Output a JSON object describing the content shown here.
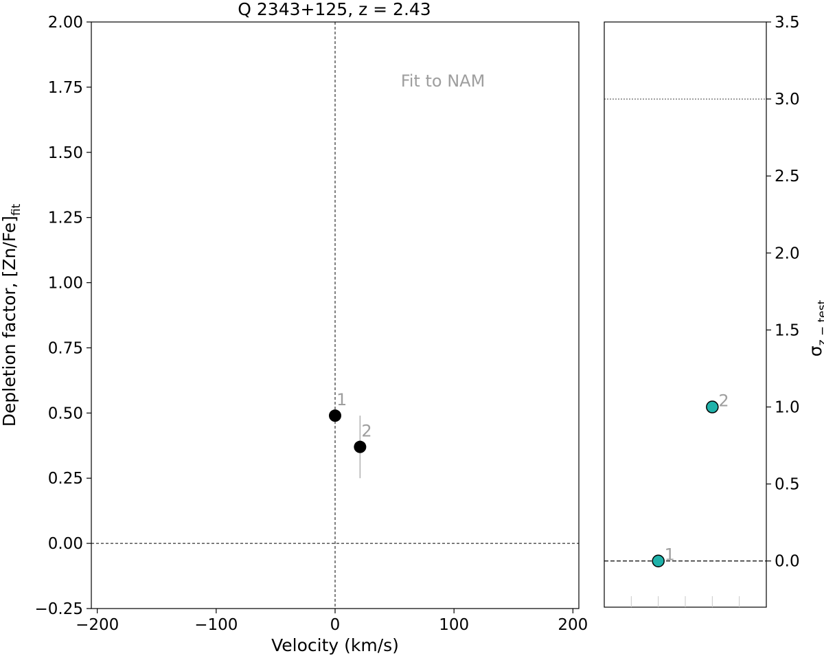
{
  "chart_data": [
    {
      "type": "scatter",
      "title": "Q 2343+125, z = 2.43",
      "xlabel": "Velocity (km/s)",
      "ylabel_main": "Depletion factor, [Zn/Fe]",
      "ylabel_sub": "fit",
      "xlim": [
        -205,
        205
      ],
      "ylim": [
        -0.25,
        2.0
      ],
      "xticks": [
        -200,
        -100,
        0,
        100,
        200
      ],
      "xtick_labels": [
        "−200",
        "−100",
        "0",
        "100",
        "200"
      ],
      "yticks": [
        -0.25,
        0.0,
        0.25,
        0.5,
        0.75,
        1.0,
        1.25,
        1.5,
        1.75,
        2.0
      ],
      "ytick_labels": [
        "−0.25",
        "0.00",
        "0.25",
        "0.50",
        "0.75",
        "1.00",
        "1.25",
        "1.50",
        "1.75",
        "2.00"
      ],
      "annotation": "Fit to NAM",
      "reference_lines": {
        "x": 0,
        "y": 0
      },
      "points": [
        {
          "label": "1",
          "x": 0,
          "y": 0.49,
          "yerr": 0.0
        },
        {
          "label": "2",
          "x": 21,
          "y": 0.37,
          "yerr": 0.12
        }
      ],
      "colors": {
        "points": "#000000",
        "errorbar": "#b0b0b0",
        "annotation": "#9e9e9e"
      }
    },
    {
      "type": "scatter",
      "ylabel_main": "σ",
      "ylabel_sub": "z − test",
      "ylim": [
        -0.3,
        3.5
      ],
      "yticks": [
        0.0,
        0.5,
        1.0,
        1.5,
        2.0,
        2.5,
        3.0,
        3.5
      ],
      "ytick_labels": [
        "0.0",
        "0.5",
        "1.0",
        "1.5",
        "2.0",
        "2.5",
        "3.0",
        "3.5"
      ],
      "reference_lines": {
        "y_dashed": 0.0,
        "y_dotted": 3.0
      },
      "points": [
        {
          "label": "1",
          "x": 2,
          "y": 0.0
        },
        {
          "label": "2",
          "x": 4,
          "y": 1.0
        }
      ],
      "xlim": [
        0,
        6
      ],
      "colors": {
        "points": "#20b2aa",
        "edge": "#000000"
      }
    }
  ]
}
